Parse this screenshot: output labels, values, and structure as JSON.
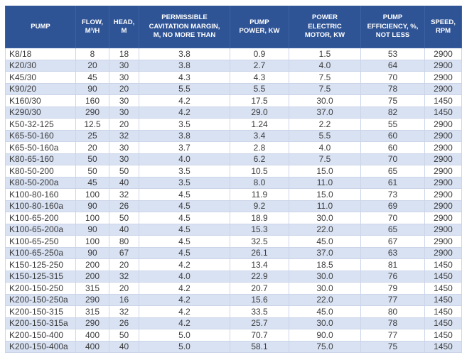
{
  "colors": {
    "header_background": "#2F5496",
    "header_text": "#FFFFFF",
    "row_background": "#FFFFFF",
    "row_alt_background": "#D9E2F3",
    "cell_border": "#CCD5E8",
    "body_text": "#3B3B3B"
  },
  "chart_data": {
    "type": "table",
    "columns": [
      {
        "id": "pump",
        "label": "PUMP"
      },
      {
        "id": "flow",
        "label": "FLOW,\nM³/H"
      },
      {
        "id": "head",
        "label": "HEAD,\nM"
      },
      {
        "id": "cavitation-margin",
        "label": "PERMISSIBLE\nCAVITATION MARGIN,\nM, NO MORE THAN"
      },
      {
        "id": "pump-power",
        "label": "PUMP\nPOWER, KW"
      },
      {
        "id": "motor-power",
        "label": "POWER\nELECTRIC\nMOTOR, KW"
      },
      {
        "id": "efficiency",
        "label": "PUMP\nEFFICIENCY, %,\nNOT LESS"
      },
      {
        "id": "speed",
        "label": "SPEED,\nRPM"
      }
    ],
    "rows": [
      [
        "K8/18",
        "8",
        "18",
        "3.8",
        "0.9",
        "1.5",
        "53",
        "2900"
      ],
      [
        "K20/30",
        "20",
        "30",
        "3.8",
        "2.7",
        "4.0",
        "64",
        "2900"
      ],
      [
        "K45/30",
        "45",
        "30",
        "4.3",
        "4.3",
        "7.5",
        "70",
        "2900"
      ],
      [
        "K90/20",
        "90",
        "20",
        "5.5",
        "5.5",
        "7.5",
        "78",
        "2900"
      ],
      [
        "K160/30",
        "160",
        "30",
        "4.2",
        "17.5",
        "30.0",
        "75",
        "1450"
      ],
      [
        "K290/30",
        "290",
        "30",
        "4.2",
        "29.0",
        "37.0",
        "82",
        "1450"
      ],
      [
        "K50-32-125",
        "12.5",
        "20",
        "3.5",
        "1.24",
        "2.2",
        "55",
        "2900"
      ],
      [
        "K65-50-160",
        "25",
        "32",
        "3.8",
        "3.4",
        "5.5",
        "60",
        "2900"
      ],
      [
        "K65-50-160a",
        "20",
        "30",
        "3.7",
        "2.8",
        "4.0",
        "60",
        "2900"
      ],
      [
        "K80-65-160",
        "50",
        "30",
        "4.0",
        "6.2",
        "7.5",
        "70",
        "2900"
      ],
      [
        "K80-50-200",
        "50",
        "50",
        "3.5",
        "10.5",
        "15.0",
        "65",
        "2900"
      ],
      [
        "K80-50-200a",
        "45",
        "40",
        "3.5",
        "8.0",
        "11.0",
        "61",
        "2900"
      ],
      [
        "K100-80-160",
        "100",
        "32",
        "4.5",
        "11.9",
        "15.0",
        "73",
        "2900"
      ],
      [
        "K100-80-160a",
        "90",
        "26",
        "4.5",
        "9.2",
        "11.0",
        "69",
        "2900"
      ],
      [
        "K100-65-200",
        "100",
        "50",
        "4.5",
        "18.9",
        "30.0",
        "70",
        "2900"
      ],
      [
        "K100-65-200a",
        "90",
        "40",
        "4.5",
        "15.3",
        "22.0",
        "65",
        "2900"
      ],
      [
        "K100-65-250",
        "100",
        "80",
        "4.5",
        "32.5",
        "45.0",
        "67",
        "2900"
      ],
      [
        "K100-65-250a",
        "90",
        "67",
        "4.5",
        "26.1",
        "37.0",
        "63",
        "2900"
      ],
      [
        "K150-125-250",
        "200",
        "20",
        "4.2",
        "13.4",
        "18.5",
        "81",
        "1450"
      ],
      [
        "K150-125-315",
        "200",
        "32",
        "4.0",
        "22.9",
        "30.0",
        "76",
        "1450"
      ],
      [
        "K200-150-250",
        "315",
        "20",
        "4.2",
        "20.7",
        "30.0",
        "79",
        "1450"
      ],
      [
        "K200-150-250a",
        "290",
        "16",
        "4.2",
        "15.6",
        "22.0",
        "77",
        "1450"
      ],
      [
        "K200-150-315",
        "315",
        "32",
        "4.2",
        "33.5",
        "45.0",
        "80",
        "1450"
      ],
      [
        "K200-150-315a",
        "290",
        "26",
        "4.2",
        "25.7",
        "30.0",
        "78",
        "1450"
      ],
      [
        "K200-150-400",
        "400",
        "50",
        "5.0",
        "70.7",
        "90.0",
        "77",
        "1450"
      ],
      [
        "K200-150-400a",
        "400",
        "40",
        "5.0",
        "58.1",
        "75.0",
        "75",
        "1450"
      ]
    ]
  }
}
